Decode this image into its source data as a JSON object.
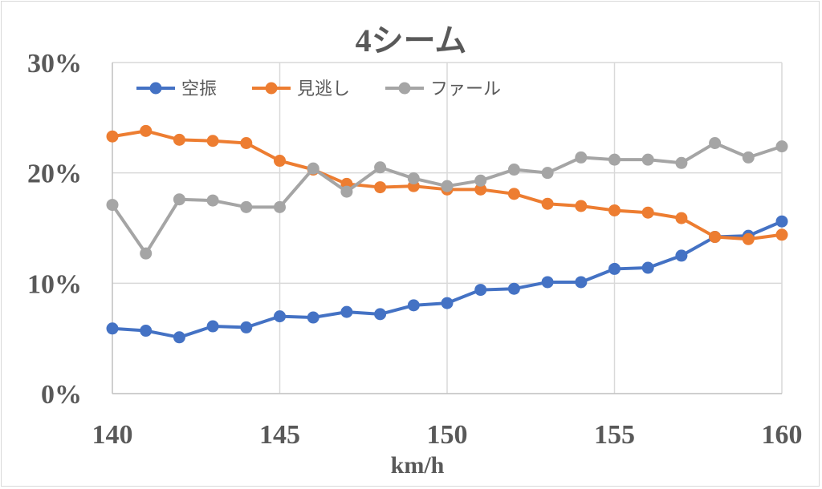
{
  "chart_data": {
    "type": "line",
    "title": "4シーム",
    "xlabel": "km/h",
    "ylabel": "",
    "xlim": [
      140,
      160
    ],
    "ylim": [
      0,
      0.3
    ],
    "x_ticks": [
      140,
      145,
      150,
      155,
      160
    ],
    "x_tick_labels": [
      "140",
      "145",
      "150",
      "155",
      "160"
    ],
    "y_ticks": [
      0,
      0.1,
      0.2,
      0.3
    ],
    "y_tick_labels": [
      "0%",
      "10%",
      "20%",
      "30%"
    ],
    "grid": true,
    "legend_position": "top-left",
    "x": [
      140,
      141,
      142,
      143,
      144,
      145,
      146,
      147,
      148,
      149,
      150,
      151,
      152,
      153,
      154,
      155,
      156,
      157,
      158,
      159,
      160
    ],
    "series": [
      {
        "name": "空振",
        "color": "#4472c4",
        "values": [
          0.059,
          0.057,
          0.051,
          0.061,
          0.06,
          0.07,
          0.069,
          0.074,
          0.072,
          0.08,
          0.082,
          0.094,
          0.095,
          0.101,
          0.101,
          0.113,
          0.114,
          0.125,
          0.142,
          0.143,
          0.156
        ]
      },
      {
        "name": "見逃し",
        "color": "#ed7d31",
        "values": [
          0.233,
          0.238,
          0.23,
          0.229,
          0.227,
          0.211,
          0.203,
          0.19,
          0.187,
          0.188,
          0.185,
          0.185,
          0.181,
          0.172,
          0.17,
          0.166,
          0.164,
          0.159,
          0.142,
          0.14,
          0.144
        ]
      },
      {
        "name": "ファール",
        "color": "#a5a5a5",
        "values": [
          0.171,
          0.127,
          0.176,
          0.175,
          0.169,
          0.169,
          0.204,
          0.183,
          0.205,
          0.195,
          0.188,
          0.193,
          0.203,
          0.2,
          0.214,
          0.212,
          0.212,
          0.209,
          0.227,
          0.214,
          0.224
        ]
      }
    ]
  }
}
